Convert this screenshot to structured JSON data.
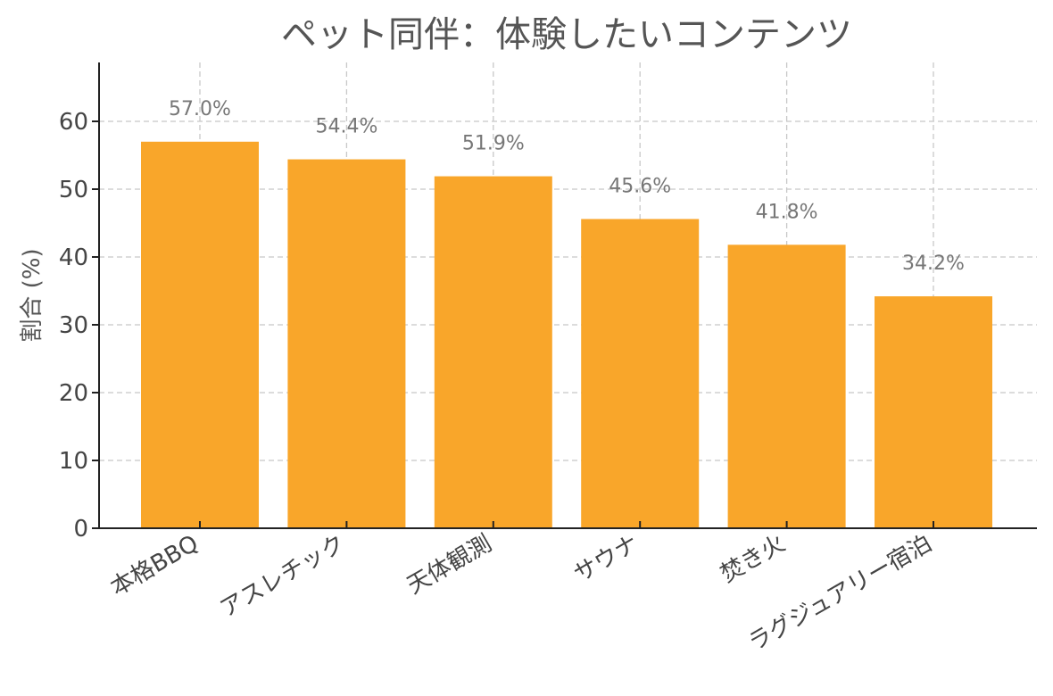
{
  "chart_data": {
    "type": "bar",
    "title": "ペット同伴：体験したいコンテンツ",
    "xlabel": "",
    "ylabel": "割合 (%)",
    "categories": [
      "本格BBQ",
      "アスレチック",
      "天体観測",
      "サウナ",
      "焚き火",
      "ラグジュアリー宿泊"
    ],
    "values": [
      57.0,
      54.4,
      51.9,
      45.6,
      41.8,
      34.2
    ],
    "data_labels": [
      "57.0%",
      "54.4%",
      "51.9%",
      "45.6%",
      "41.8%",
      "34.2%"
    ],
    "ylim": [
      0,
      68
    ],
    "yticks": [
      0,
      10,
      20,
      30,
      40,
      50,
      60
    ],
    "grid": true,
    "bar_color": "#F9A62A"
  }
}
